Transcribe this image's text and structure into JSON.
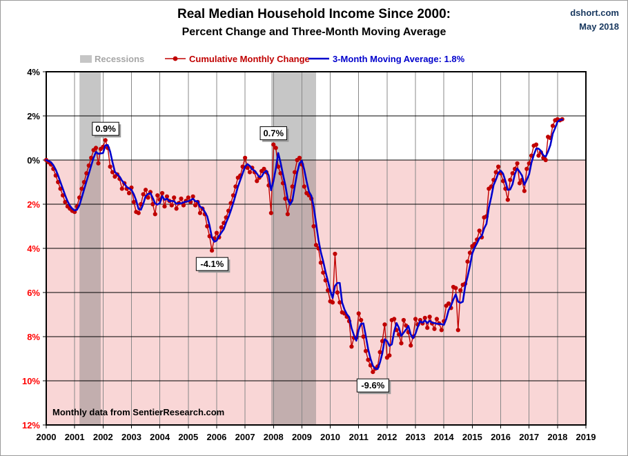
{
  "header": {
    "title": "Real Median Household Income Since 2000:",
    "subtitle": "Percent Change and Three-Month Moving Average",
    "brand_line1": "dshort.com",
    "brand_line2": "May 2018"
  },
  "legend": {
    "recessions_label": "Recessions",
    "series1_label": "Cumulative Monthly Change",
    "series2_label": "3-Month Moving Average: 1.8%"
  },
  "footer_note": "Monthly data from SentierResearch.com",
  "colors": {
    "series1": "#C00000",
    "series2": "#0000CC",
    "negative_region_fill": "#F9D6D6",
    "recession_band_fill": "rgba(120,120,120,0.42)",
    "legend_recession_swatch": "#C6C6C6",
    "legend_recessions_text": "#A6A6A6",
    "brand_text": "#17375E",
    "negative_tick_text": "#FF0000",
    "positive_tick_text": "#000000",
    "vertical_grid": "#888888",
    "horizontal_grid": "#000000"
  },
  "chart_data": {
    "type": "line",
    "title": "Real Median Household Income Since 2000: Percent Change and Three-Month Moving Average",
    "unit": "%",
    "xlim": [
      2000,
      2019
    ],
    "ylim": [
      -12,
      4
    ],
    "grid": true,
    "legend_position": "top",
    "x_ticks": [
      "2000",
      "2001",
      "2002",
      "2003",
      "2004",
      "2005",
      "2006",
      "2007",
      "2008",
      "2009",
      "2010",
      "2011",
      "2012",
      "2013",
      "2014",
      "2015",
      "2016",
      "2017",
      "2018",
      "2019"
    ],
    "y_ticks": [
      {
        "value": 4,
        "label": "4%"
      },
      {
        "value": 2,
        "label": "2%"
      },
      {
        "value": 0,
        "label": "0%"
      },
      {
        "value": -2,
        "label": "2%"
      },
      {
        "value": -4,
        "label": "4%"
      },
      {
        "value": -6,
        "label": "6%"
      },
      {
        "value": -8,
        "label": "8%"
      },
      {
        "value": -10,
        "label": "10%"
      },
      {
        "value": -12,
        "label": "12%"
      }
    ],
    "recessions": [
      {
        "start_year_frac": 2001.17,
        "end_year_frac": 2001.92
      },
      {
        "start_year_frac": 2007.92,
        "end_year_frac": 2009.5
      }
    ],
    "series": [
      {
        "name": "Cumulative Monthly Change",
        "type": "line+markers",
        "color": "#C00000",
        "frequency": "monthly",
        "start_year": 2000,
        "start_month": 1,
        "values": [
          0.0,
          -0.1,
          -0.2,
          -0.4,
          -0.7,
          -1.0,
          -1.3,
          -1.6,
          -1.9,
          -2.1,
          -2.2,
          -2.3,
          -2.35,
          -2.1,
          -1.7,
          -1.3,
          -1.0,
          -0.6,
          -0.25,
          0.1,
          0.45,
          0.55,
          -0.15,
          0.5,
          0.6,
          0.9,
          0.55,
          -0.3,
          -0.55,
          -0.75,
          -0.65,
          -0.85,
          -1.3,
          -1.05,
          -1.3,
          -1.5,
          -1.25,
          -1.9,
          -2.35,
          -2.4,
          -2.0,
          -1.55,
          -1.35,
          -1.7,
          -1.45,
          -2.0,
          -2.45,
          -1.6,
          -1.8,
          -1.5,
          -2.1,
          -1.65,
          -1.85,
          -2.05,
          -1.7,
          -2.2,
          -1.95,
          -1.75,
          -2.05,
          -1.85,
          -1.7,
          -1.9,
          -1.65,
          -2.05,
          -1.9,
          -2.4,
          -2.2,
          -2.45,
          -3.0,
          -3.45,
          -4.1,
          -3.55,
          -3.3,
          -3.5,
          -3.05,
          -2.85,
          -2.6,
          -2.3,
          -1.95,
          -1.6,
          -1.2,
          -0.8,
          -0.7,
          -0.3,
          0.1,
          -0.35,
          -0.55,
          -0.35,
          -0.55,
          -0.95,
          -0.8,
          -0.5,
          -0.4,
          -0.55,
          -1.15,
          -2.4,
          0.7,
          0.55,
          -0.3,
          -0.6,
          -1.05,
          -1.75,
          -2.45,
          -1.85,
          -1.2,
          -0.55,
          0.0,
          0.1,
          -0.2,
          -1.2,
          -1.5,
          -1.6,
          -1.75,
          -3.0,
          -3.85,
          -4.0,
          -4.65,
          -5.1,
          -5.45,
          -5.9,
          -6.4,
          -6.45,
          -4.25,
          -6.0,
          -6.45,
          -6.9,
          -6.95,
          -7.1,
          -7.3,
          -8.45,
          -8.05,
          -8.05,
          -6.95,
          -7.25,
          -8.0,
          -8.65,
          -9.05,
          -9.3,
          -9.6,
          -9.45,
          -9.35,
          -8.7,
          -8.2,
          -7.45,
          -8.95,
          -8.85,
          -7.25,
          -7.2,
          -7.7,
          -7.9,
          -8.3,
          -7.25,
          -7.5,
          -7.8,
          -8.4,
          -8.0,
          -7.2,
          -7.45,
          -7.25,
          -7.4,
          -7.15,
          -7.6,
          -7.1,
          -7.4,
          -7.65,
          -7.2,
          -7.4,
          -7.7,
          -7.3,
          -6.6,
          -6.5,
          -6.7,
          -5.75,
          -5.8,
          -7.7,
          -5.9,
          -5.65,
          -5.6,
          -4.6,
          -4.2,
          -3.9,
          -3.8,
          -3.6,
          -3.2,
          -3.5,
          -2.6,
          -2.55,
          -1.3,
          -1.2,
          -0.9,
          -0.55,
          -0.3,
          -0.6,
          -0.95,
          -1.3,
          -1.8,
          -0.9,
          -0.6,
          -0.4,
          -0.15,
          -1.05,
          -0.9,
          -1.4,
          -0.4,
          -0.15,
          0.2,
          0.65,
          0.7,
          0.2,
          0.35,
          0.1,
          0.0,
          1.05,
          1.0,
          1.55,
          1.8,
          1.85,
          1.8,
          1.85
        ]
      },
      {
        "name": "3-Month Moving Average",
        "type": "line",
        "color": "#0000CC",
        "derived_from": "Cumulative Monthly Change",
        "moving_average_window": 3,
        "latest_value_pct": 1.8
      }
    ],
    "annotations": [
      {
        "label": "0.9%",
        "year_frac": 2002.09,
        "value": 0.9,
        "placement": "above"
      },
      {
        "label": "0.7%",
        "year_frac": 2008.0,
        "value": 0.7,
        "placement": "above"
      },
      {
        "label": "-4.1%",
        "year_frac": 2005.84,
        "value": -4.1,
        "placement": "below"
      },
      {
        "label": "-9.6%",
        "year_frac": 2011.5,
        "value": -9.6,
        "placement": "below"
      }
    ]
  }
}
